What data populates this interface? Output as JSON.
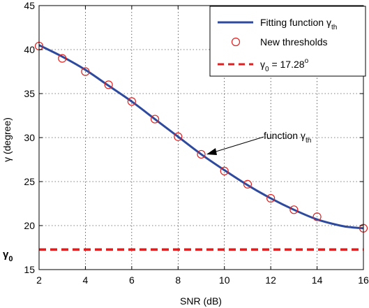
{
  "chart_data": {
    "type": "line",
    "xlabel": "SNR (dB)",
    "ylabel": "γ (degree)",
    "xlim": [
      2,
      16
    ],
    "ylim": [
      15,
      45
    ],
    "xticks": [
      2,
      4,
      6,
      8,
      10,
      12,
      14,
      16
    ],
    "yticks": [
      15,
      20,
      25,
      30,
      35,
      40,
      45
    ],
    "grid": true,
    "legend_position": "top-right",
    "fit_curve": {
      "x": [
        2,
        3,
        4,
        5,
        6,
        7,
        8,
        9,
        10,
        11,
        12,
        13,
        14,
        15,
        15.5,
        16
      ],
      "y": [
        40.5,
        39.2,
        37.7,
        35.9,
        34.1,
        32.1,
        30.1,
        28.1,
        26.3,
        24.6,
        23.1,
        21.8,
        20.7,
        20.0,
        19.8,
        19.7
      ],
      "color": "#2e4a9e"
    },
    "thresholds": {
      "x": [
        2,
        3,
        4,
        5,
        6,
        7,
        8,
        9,
        10,
        11,
        12,
        13,
        14,
        16
      ],
      "y": [
        40.4,
        39.0,
        37.5,
        36.0,
        34.1,
        32.1,
        30.1,
        28.1,
        26.2,
        24.7,
        23.1,
        21.8,
        21.0,
        19.7
      ],
      "color": "#e02020"
    },
    "gamma0": {
      "value": 17.28,
      "color": "#e02020"
    },
    "legend": [
      {
        "label": "Fitting function γ",
        "sub": "th",
        "style": "line"
      },
      {
        "label": "New thresholds",
        "style": "marker"
      },
      {
        "label": "γ",
        "sub": "0",
        "tail": " = 17.28",
        "sup": "o",
        "style": "dashed"
      }
    ],
    "annotation": {
      "label": "function γ",
      "sub": "th",
      "x": 9,
      "y": 28.1
    },
    "gamma0_axis_label": {
      "label": "γ",
      "sub": "0"
    }
  }
}
